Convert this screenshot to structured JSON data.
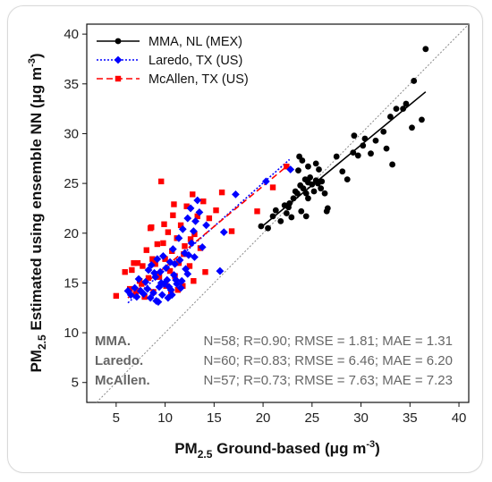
{
  "chart_data": {
    "type": "scatter",
    "xlabel": "PM2.5 Ground-based (μg m-3)",
    "ylabel": "PM2.5 Estimated using ensemble NN (μg m-3)",
    "axis_labels": {
      "x": {
        "main": "PM",
        "sub": "2.5",
        "text": " Ground-based (μg m",
        "sup": "-3",
        "end": ")"
      },
      "y": {
        "main": "PM",
        "sub": "2.5",
        "text": "  Estimated using ensemble NN (μg m",
        "sup": "-3",
        "end": ")"
      }
    },
    "xlim": [
      2,
      41
    ],
    "ylim": [
      3,
      41
    ],
    "xticks": [
      5,
      10,
      15,
      20,
      25,
      30,
      35,
      40
    ],
    "yticks": [
      5,
      10,
      15,
      20,
      25,
      30,
      35,
      40
    ],
    "identity_line": true,
    "legend_position": "top-left",
    "series": [
      {
        "name": "MMA, NL (MEX)",
        "color": "#000000",
        "marker": "circle",
        "line_style": "solid",
        "fit": [
          [
            19.8,
            20.6
          ],
          [
            36.6,
            34.2
          ]
        ],
        "points": [
          [
            19.8,
            20.7
          ],
          [
            20.5,
            20.5
          ],
          [
            21.0,
            21.7
          ],
          [
            21.3,
            22.3
          ],
          [
            21.8,
            21.2
          ],
          [
            22.2,
            22.8
          ],
          [
            22.4,
            22.0
          ],
          [
            22.6,
            22.6
          ],
          [
            22.9,
            21.6
          ],
          [
            22.7,
            23.0
          ],
          [
            23.1,
            23.5
          ],
          [
            23.3,
            24.2
          ],
          [
            23.5,
            24.0
          ],
          [
            23.8,
            24.8
          ],
          [
            23.9,
            22.2
          ],
          [
            24.1,
            24.5
          ],
          [
            24.3,
            25.4
          ],
          [
            24.4,
            24.0
          ],
          [
            24.6,
            25.1
          ],
          [
            24.8,
            25.6
          ],
          [
            24.6,
            23.5
          ],
          [
            25.0,
            24.9
          ],
          [
            25.2,
            24.2
          ],
          [
            25.4,
            25.3
          ],
          [
            25.6,
            25.0
          ],
          [
            25.7,
            26.4
          ],
          [
            25.9,
            24.5
          ],
          [
            26.0,
            25.2
          ],
          [
            25.4,
            27.0
          ],
          [
            24.6,
            26.7
          ],
          [
            23.6,
            26.3
          ],
          [
            23.7,
            27.7
          ],
          [
            24.0,
            27.3
          ],
          [
            24.4,
            21.7
          ],
          [
            26.3,
            24.0
          ],
          [
            26.5,
            22.2
          ],
          [
            26.6,
            22.5
          ],
          [
            27.5,
            27.7
          ],
          [
            28.1,
            26.2
          ],
          [
            28.6,
            25.4
          ],
          [
            29.2,
            28.1
          ],
          [
            29.3,
            29.8
          ],
          [
            29.7,
            27.8
          ],
          [
            30.2,
            28.8
          ],
          [
            30.4,
            29.5
          ],
          [
            31.0,
            28.0
          ],
          [
            31.5,
            29.3
          ],
          [
            32.3,
            30.2
          ],
          [
            32.6,
            28.5
          ],
          [
            33.0,
            31.7
          ],
          [
            33.2,
            26.9
          ],
          [
            33.6,
            32.5
          ],
          [
            34.3,
            32.5
          ],
          [
            34.6,
            33.0
          ],
          [
            35.2,
            30.6
          ],
          [
            35.4,
            35.3
          ],
          [
            36.2,
            31.4
          ],
          [
            36.6,
            38.5
          ]
        ]
      },
      {
        "name": "Laredo, TX (US)",
        "color": "#0000ff",
        "marker": "diamond",
        "line_style": "dotted",
        "fit": [
          [
            6.2,
            13.0
          ],
          [
            22.7,
            27.4
          ]
        ],
        "points": [
          [
            6.2,
            14.2
          ],
          [
            6.5,
            13.8
          ],
          [
            6.9,
            14.5
          ],
          [
            7.1,
            13.6
          ],
          [
            7.3,
            15.4
          ],
          [
            7.5,
            14.2
          ],
          [
            7.8,
            13.9
          ],
          [
            8.0,
            15.1
          ],
          [
            8.2,
            14.4
          ],
          [
            8.3,
            16.3
          ],
          [
            8.5,
            13.5
          ],
          [
            8.6,
            16.8
          ],
          [
            8.8,
            14.0
          ],
          [
            9.0,
            15.6
          ],
          [
            9.1,
            13.2
          ],
          [
            9.2,
            17.4
          ],
          [
            9.4,
            14.6
          ],
          [
            9.5,
            16.1
          ],
          [
            9.7,
            13.8
          ],
          [
            9.8,
            17.7
          ],
          [
            9.9,
            14.9
          ],
          [
            10.1,
            16.5
          ],
          [
            10.2,
            15.3
          ],
          [
            10.3,
            13.5
          ],
          [
            10.5,
            17.1
          ],
          [
            10.6,
            14.3
          ],
          [
            10.8,
            18.4
          ],
          [
            10.9,
            15.8
          ],
          [
            11.0,
            16.9
          ],
          [
            11.2,
            14.9
          ],
          [
            11.4,
            19.5
          ],
          [
            11.5,
            17.3
          ],
          [
            11.7,
            15.2
          ],
          [
            11.8,
            20.4
          ],
          [
            12.0,
            18.0
          ],
          [
            12.1,
            16.4
          ],
          [
            12.3,
            21.5
          ],
          [
            12.4,
            17.8
          ],
          [
            12.6,
            22.5
          ],
          [
            12.7,
            19.0
          ],
          [
            12.9,
            20.2
          ],
          [
            13.1,
            21.2
          ],
          [
            13.3,
            23.3
          ],
          [
            13.5,
            22.1
          ],
          [
            13.8,
            18.6
          ],
          [
            14.2,
            20.8
          ],
          [
            15.6,
            16.2
          ],
          [
            16.0,
            20.1
          ],
          [
            17.2,
            23.9
          ],
          [
            11.1,
            15.3
          ],
          [
            10.4,
            14.6
          ],
          [
            9.6,
            15.0
          ],
          [
            8.9,
            16.0
          ],
          [
            10.7,
            13.8
          ],
          [
            11.6,
            14.5
          ],
          [
            12.3,
            15.9
          ],
          [
            13.0,
            17.6
          ],
          [
            20.3,
            25.2
          ],
          [
            22.8,
            26.4
          ],
          [
            9.3,
            13.1
          ]
        ]
      },
      {
        "name": "McAllen, TX (US)",
        "color": "#ff0000",
        "marker": "square",
        "line_style": "dashed",
        "fit": [
          [
            6.2,
            13.5
          ],
          [
            22.4,
            26.7
          ]
        ],
        "points": [
          [
            5.0,
            13.7
          ],
          [
            5.9,
            16.1
          ],
          [
            6.6,
            16.3
          ],
          [
            7.0,
            13.9
          ],
          [
            7.2,
            17.0
          ],
          [
            7.4,
            15.2
          ],
          [
            7.7,
            16.7
          ],
          [
            7.9,
            13.6
          ],
          [
            8.1,
            18.3
          ],
          [
            8.3,
            15.5
          ],
          [
            8.5,
            20.5
          ],
          [
            8.7,
            17.4
          ],
          [
            8.8,
            14.1
          ],
          [
            9.0,
            16.9
          ],
          [
            9.2,
            18.9
          ],
          [
            9.4,
            15.6
          ],
          [
            9.6,
            25.2
          ],
          [
            9.8,
            19.0
          ],
          [
            10.0,
            17.4
          ],
          [
            10.1,
            14.7
          ],
          [
            10.3,
            20.1
          ],
          [
            10.5,
            16.2
          ],
          [
            10.7,
            18.2
          ],
          [
            10.8,
            21.8
          ],
          [
            11.0,
            15.7
          ],
          [
            11.2,
            19.5
          ],
          [
            11.4,
            17.0
          ],
          [
            11.6,
            20.8
          ],
          [
            11.8,
            14.7
          ],
          [
            12.0,
            18.7
          ],
          [
            12.2,
            22.7
          ],
          [
            12.5,
            16.7
          ],
          [
            12.8,
            23.9
          ],
          [
            13.0,
            19.9
          ],
          [
            13.3,
            21.7
          ],
          [
            13.6,
            18.5
          ],
          [
            13.9,
            23.2
          ],
          [
            14.5,
            21.5
          ],
          [
            15.2,
            22.3
          ],
          [
            15.8,
            24.1
          ],
          [
            14.1,
            16.1
          ],
          [
            12.9,
            15.2
          ],
          [
            11.3,
            14.3
          ],
          [
            10.9,
            22.9
          ],
          [
            9.9,
            20.9
          ],
          [
            8.6,
            20.6
          ],
          [
            7.6,
            14.9
          ],
          [
            6.8,
            17.0
          ],
          [
            6.4,
            14.4
          ],
          [
            16.8,
            20.2
          ],
          [
            19.4,
            22.2
          ],
          [
            22.4,
            26.7
          ],
          [
            21.0,
            24.6
          ],
          [
            9.1,
            15.9
          ],
          [
            10.6,
            13.9
          ],
          [
            11.9,
            17.9
          ],
          [
            12.6,
            19.4
          ]
        ]
      }
    ],
    "stats": [
      {
        "name": "MMA.",
        "text": "N=58; R=0.90; RMSE = 1.81; MAE = 1.31"
      },
      {
        "name": "Laredo.",
        "text": "N=60; R=0.83; RMSE = 6.46; MAE = 6.20"
      },
      {
        "name": "McAllen.",
        "text": "N=57; R=0.73; RMSE = 7.63; MAE = 7.23"
      }
    ]
  }
}
